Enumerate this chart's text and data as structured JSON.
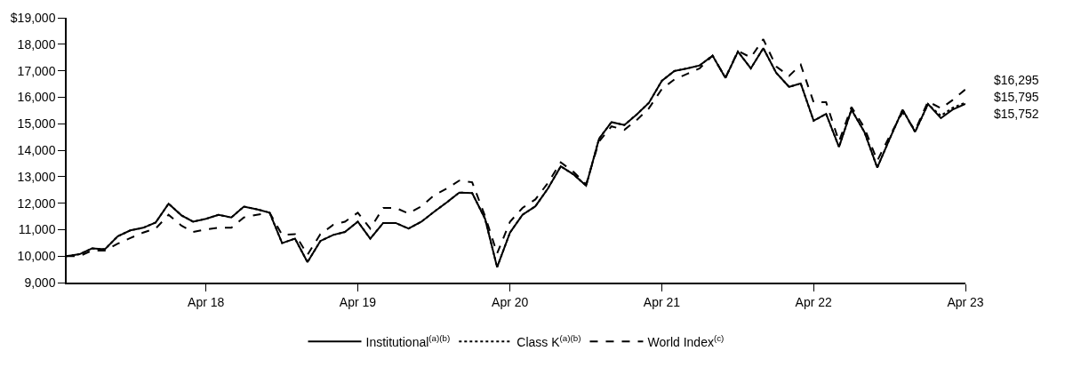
{
  "chart_data": {
    "type": "line",
    "x": [
      "2017-05",
      "2017-06",
      "2017-07",
      "2017-08",
      "2017-09",
      "2017-10",
      "2017-11",
      "2017-12",
      "2018-01",
      "2018-02",
      "2018-03",
      "2018-04",
      "2018-05",
      "2018-06",
      "2018-07",
      "2018-08",
      "2018-09",
      "2018-10",
      "2018-11",
      "2018-12",
      "2019-01",
      "2019-02",
      "2019-03",
      "2019-04",
      "2019-05",
      "2019-06",
      "2019-07",
      "2019-08",
      "2019-09",
      "2019-10",
      "2019-11",
      "2019-12",
      "2020-01",
      "2020-02",
      "2020-03",
      "2020-04",
      "2020-05",
      "2020-06",
      "2020-07",
      "2020-08",
      "2020-09",
      "2020-10",
      "2020-11",
      "2020-12",
      "2021-01",
      "2021-02",
      "2021-03",
      "2021-04",
      "2021-05",
      "2021-06",
      "2021-07",
      "2021-08",
      "2021-09",
      "2021-10",
      "2021-11",
      "2021-12",
      "2022-01",
      "2022-02",
      "2022-03",
      "2022-04",
      "2022-05",
      "2022-06",
      "2022-07",
      "2022-08",
      "2022-09",
      "2022-10",
      "2022-11",
      "2022-12",
      "2023-01",
      "2023-02",
      "2023-03",
      "2023-04"
    ],
    "series": [
      {
        "name": "Institutional$^{(a)(b)}$",
        "color": "#000000",
        "line_style": "solid",
        "values": [
          10000,
          10070,
          10290,
          10260,
          10750,
          10970,
          11070,
          11270,
          11980,
          11540,
          11300,
          11410,
          11560,
          11460,
          11870,
          11770,
          11640,
          10490,
          10660,
          9770,
          10570,
          10800,
          10910,
          11300,
          10660,
          11250,
          11250,
          11040,
          11300,
          11670,
          12030,
          12400,
          12380,
          11410,
          9580,
          10890,
          11560,
          11880,
          12550,
          13390,
          13080,
          12660,
          14430,
          15060,
          14950,
          15370,
          15790,
          16620,
          16990,
          17090,
          17200,
          17570,
          16730,
          17720,
          17090,
          17850,
          16920,
          16390,
          16520,
          15110,
          15370,
          14120,
          15530,
          14690,
          13340,
          14430,
          15530,
          14690,
          15740,
          15210,
          15530,
          15752
        ]
      },
      {
        "name": "Class K$^{(a)(b)}$",
        "color": "#000000",
        "line_style": "dotted",
        "values": [
          10000,
          10070,
          10290,
          10260,
          10750,
          10970,
          11070,
          11270,
          11980,
          11540,
          11300,
          11410,
          11560,
          11460,
          11870,
          11770,
          11640,
          10490,
          10660,
          9770,
          10570,
          10800,
          10910,
          11300,
          10660,
          11250,
          11250,
          11040,
          11300,
          11670,
          12030,
          12400,
          12380,
          11410,
          9580,
          10890,
          11560,
          11880,
          12550,
          13390,
          13080,
          12660,
          14430,
          15060,
          14950,
          15370,
          15790,
          16620,
          16990,
          17090,
          17200,
          17570,
          16730,
          17720,
          17090,
          17850,
          16920,
          16390,
          16520,
          15110,
          15370,
          14120,
          15530,
          14690,
          13340,
          14430,
          15530,
          14690,
          15740,
          15300,
          15600,
          15795
        ]
      },
      {
        "name": "World Index$^{(c)}$",
        "color": "#000000",
        "line_style": "dashed",
        "values": [
          10000,
          10000,
          10210,
          10210,
          10470,
          10680,
          10890,
          11040,
          11560,
          11150,
          10910,
          11010,
          11070,
          11070,
          11460,
          11560,
          11640,
          10800,
          10830,
          10050,
          10830,
          11180,
          11300,
          11640,
          11040,
          11820,
          11820,
          11610,
          11880,
          12290,
          12550,
          12850,
          12790,
          11510,
          10100,
          11300,
          11820,
          12140,
          12760,
          13540,
          13180,
          12710,
          14330,
          14900,
          14770,
          15160,
          15580,
          16310,
          16670,
          16880,
          17090,
          17570,
          16730,
          17750,
          17500,
          18190,
          17160,
          16800,
          17230,
          15810,
          15810,
          14330,
          15630,
          14850,
          13600,
          14540,
          15430,
          14750,
          15840,
          15580,
          15890,
          16295
        ]
      }
    ],
    "annotations": [
      "$16,295",
      "$15,795",
      "$15,752"
    ],
    "xlim": [
      "2017-05",
      "2023-04"
    ],
    "xticks": [
      {
        "value": "2018-04",
        "label": "Apr 18"
      },
      {
        "value": "2019-04",
        "label": "Apr 19"
      },
      {
        "value": "2020-04",
        "label": "Apr 20"
      },
      {
        "value": "2021-04",
        "label": "Apr 21"
      },
      {
        "value": "2022-04",
        "label": "Apr 22"
      },
      {
        "value": "2023-04",
        "label": "Apr 23"
      }
    ],
    "ylim": [
      9000,
      19000
    ],
    "yticks": [
      {
        "value": 9000,
        "label": "9,000"
      },
      {
        "value": 10000,
        "label": "10,000"
      },
      {
        "value": 11000,
        "label": "11,000"
      },
      {
        "value": 12000,
        "label": "12,000"
      },
      {
        "value": 13000,
        "label": "13,000"
      },
      {
        "value": 14000,
        "label": "14,000"
      },
      {
        "value": 15000,
        "label": "15,000"
      },
      {
        "value": 16000,
        "label": "16,000"
      },
      {
        "value": 17000,
        "label": "17,000"
      },
      {
        "value": 18000,
        "label": "18,000"
      },
      {
        "value": 19000,
        "label": "$19,000"
      }
    ],
    "legend": "bottom"
  }
}
